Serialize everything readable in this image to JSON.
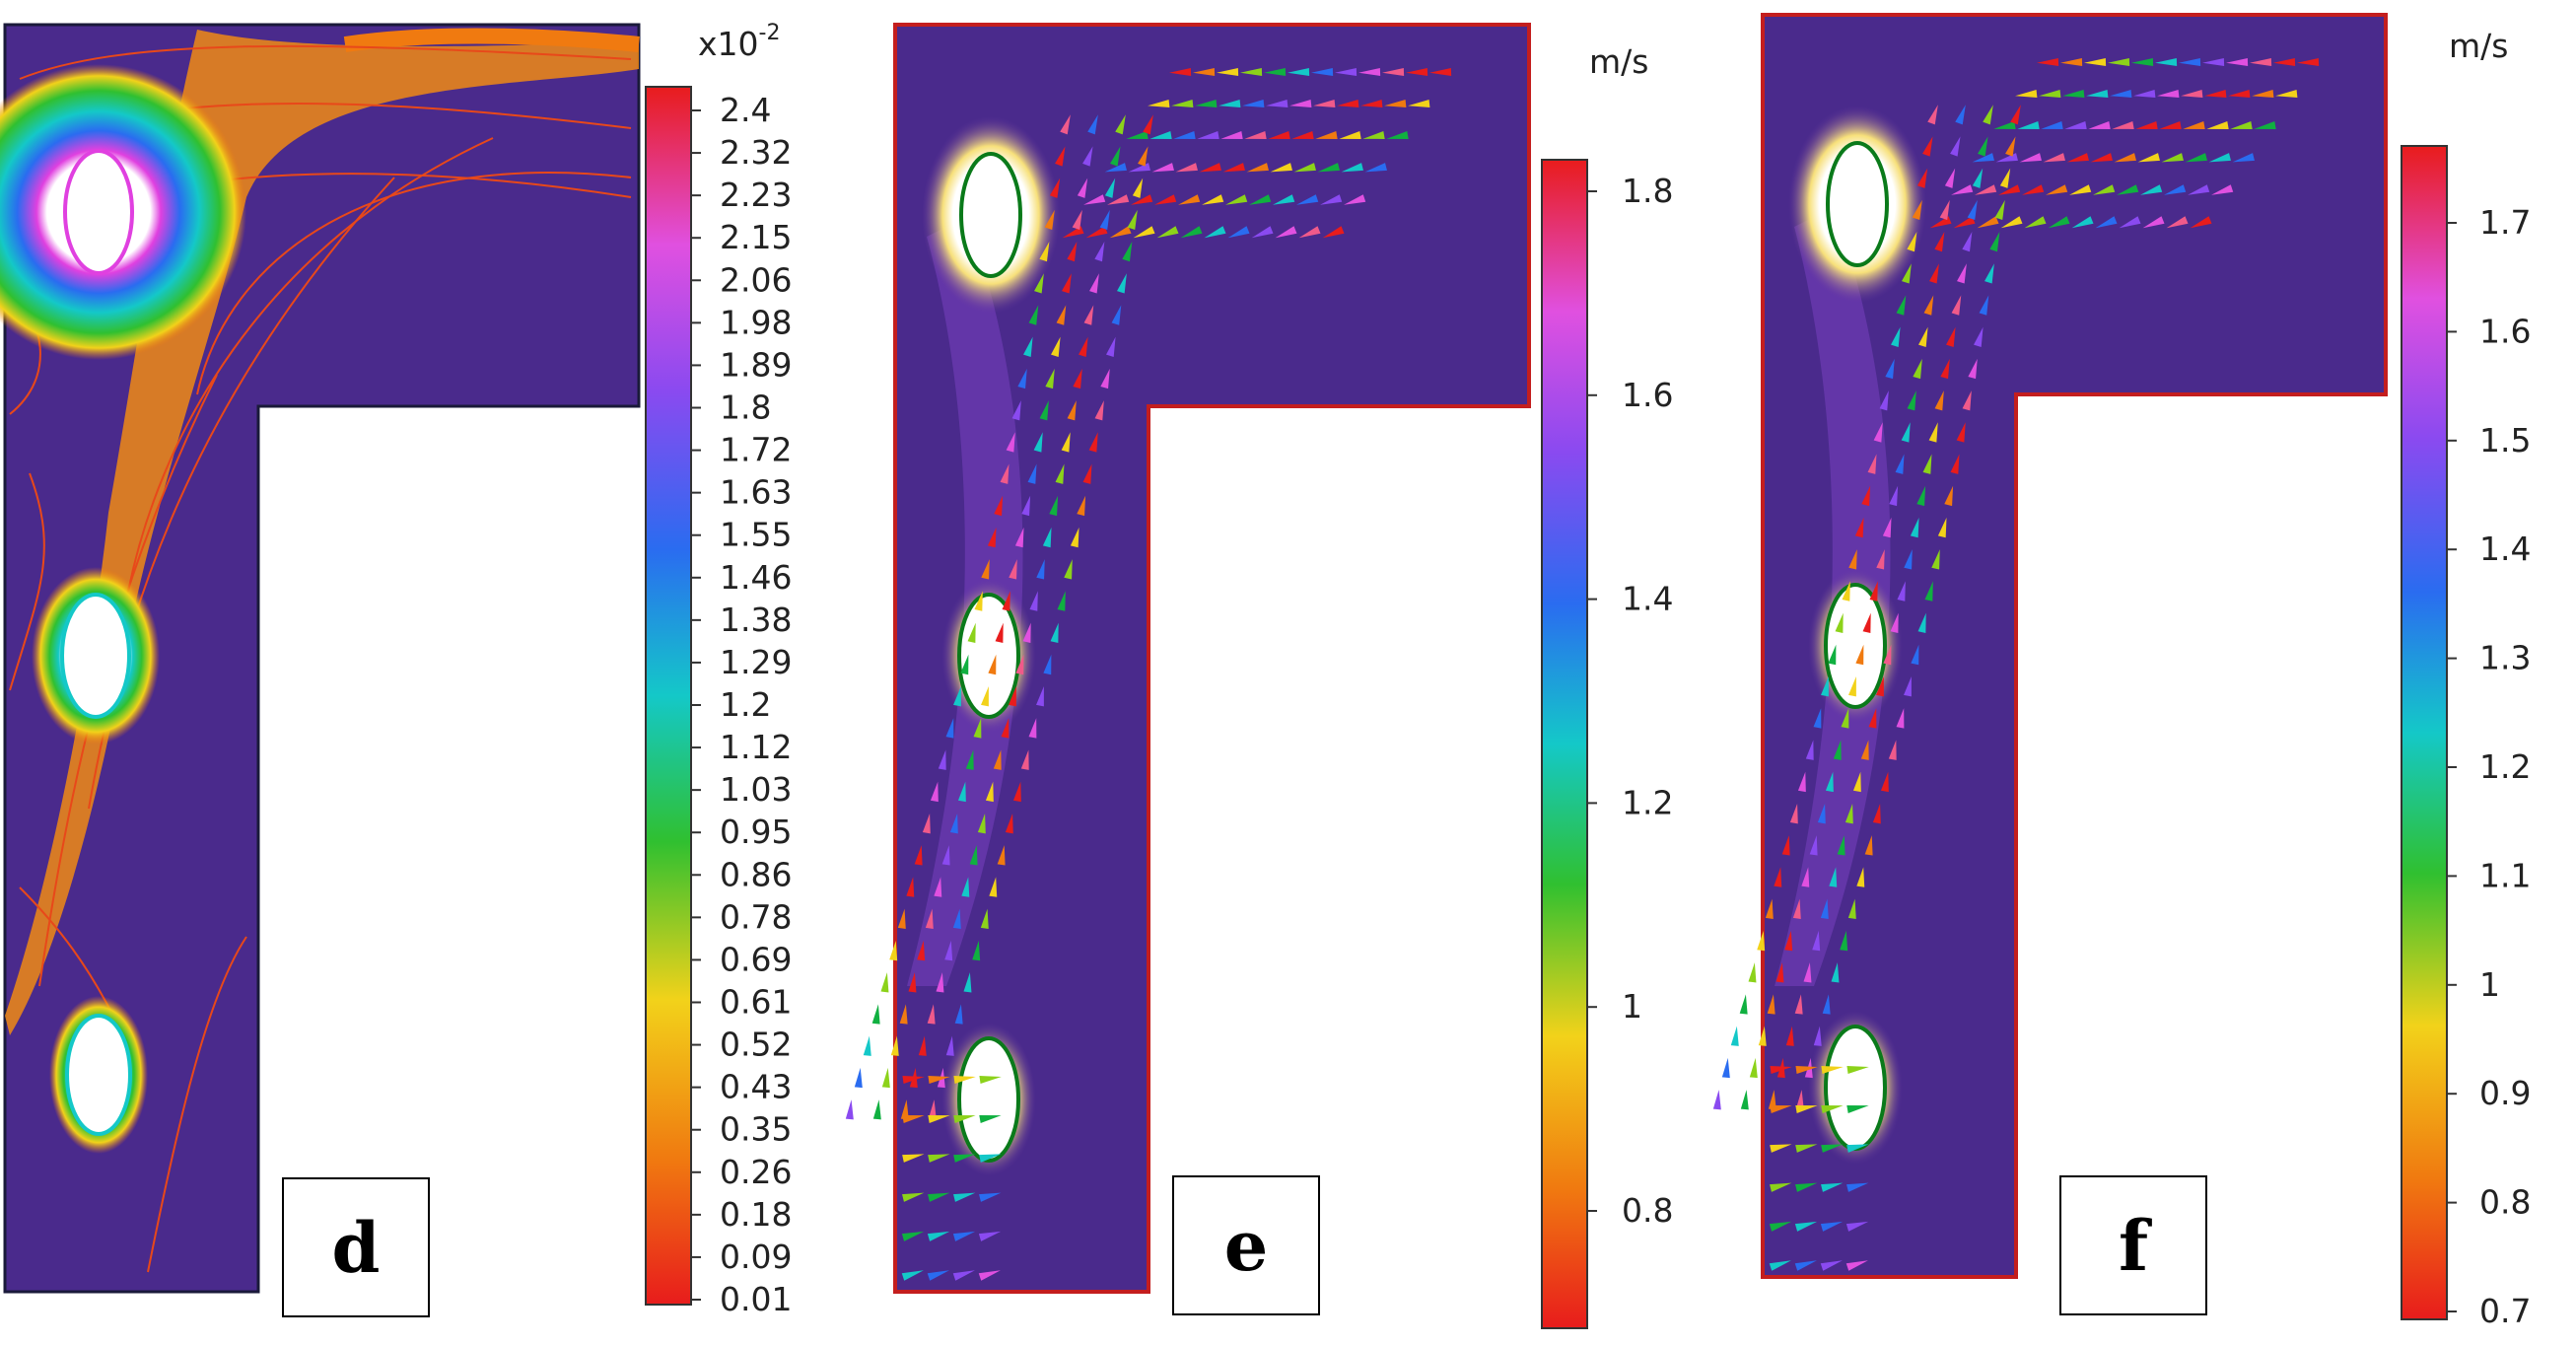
{
  "panels": [
    {
      "id": "d",
      "label": "d",
      "colorbar": {
        "unit": "",
        "exponent_label": "x10",
        "exponent_power": "-2",
        "ticks": [
          "2.4",
          "2.32",
          "2.23",
          "2.15",
          "2.06",
          "1.98",
          "1.89",
          "1.8",
          "1.72",
          "1.63",
          "1.55",
          "1.46",
          "1.38",
          "1.29",
          "1.2",
          "1.12",
          "1.03",
          "0.95",
          "0.86",
          "0.78",
          "0.69",
          "0.61",
          "0.52",
          "0.43",
          "0.35",
          "0.26",
          "0.18",
          "0.09",
          "0.01"
        ]
      }
    },
    {
      "id": "e",
      "label": "e",
      "colorbar": {
        "unit": "m/s",
        "ticks": [
          "1.8",
          "1.6",
          "1.4",
          "1.2",
          "1",
          "0.8"
        ]
      }
    },
    {
      "id": "f",
      "label": "f",
      "colorbar": {
        "unit": "m/s",
        "ticks": [
          "1.7",
          "1.6",
          "1.5",
          "1.4",
          "1.3",
          "1.2",
          "1.1",
          "1",
          "0.9",
          "0.8",
          "0.7"
        ]
      }
    }
  ],
  "colors": {
    "domain_fill": "#4a2a8c",
    "wall": "#c41e1e",
    "colormap": [
      "#e81c1c",
      "#f07a10",
      "#f2d21a",
      "#8cd21a",
      "#10b040",
      "#14c8c8",
      "#2a6cf0",
      "#8a4af0",
      "#e050e0",
      "#f05a8a",
      "#e81c1c"
    ]
  }
}
